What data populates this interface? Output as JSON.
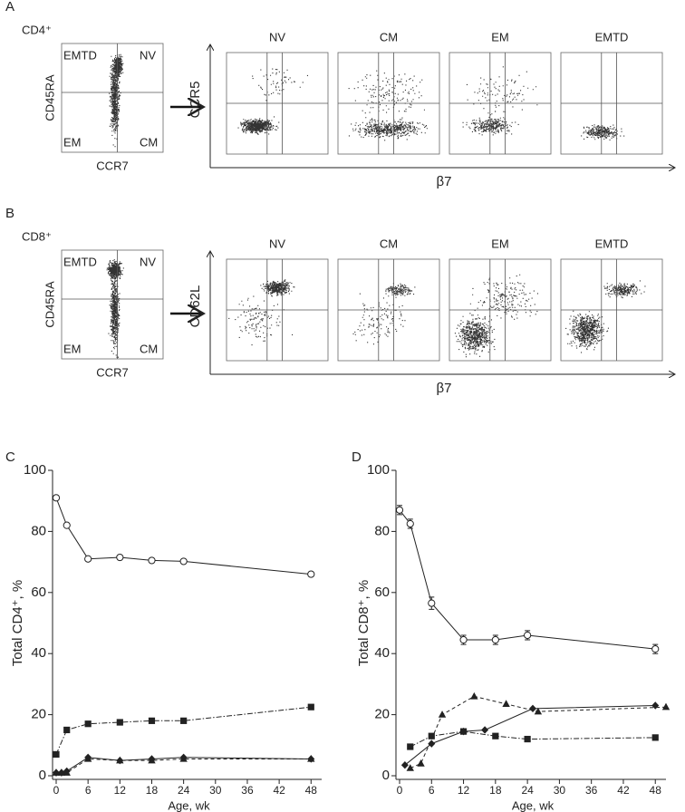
{
  "panels": {
    "A": {
      "letter": "A",
      "population": "CD4⁺",
      "gate_labels": [
        "EMTD",
        "NV",
        "EM",
        "CM"
      ],
      "y_axis": "CD45RA",
      "x_axis": "CCR7",
      "subset_titles": [
        "NV",
        "CM",
        "EM",
        "EMTD"
      ],
      "marker_y": "CCR5",
      "marker_x": "β7"
    },
    "B": {
      "letter": "B",
      "population": "CD8⁺",
      "gate_labels": [
        "EMTD",
        "NV",
        "EM",
        "CM"
      ],
      "y_axis": "CD45RA",
      "x_axis": "CCR7",
      "subset_titles": [
        "NV",
        "CM",
        "EM",
        "EMTD"
      ],
      "marker_y": "CD62L",
      "marker_x": "β7"
    }
  },
  "chart_data": [
    {
      "letter": "C",
      "type": "line",
      "x_label": "Age, wk",
      "y_label": "Total CD4⁺, %",
      "xlim": [
        0,
        50
      ],
      "xticks": [
        0,
        6,
        12,
        18,
        24,
        30,
        36,
        42,
        48
      ],
      "ylim": [
        0,
        100
      ],
      "yticks": [
        0,
        20,
        40,
        60,
        80,
        100
      ],
      "series": [
        {
          "marker": "circle-open",
          "dash": "solid",
          "color": "#222",
          "x": [
            0,
            2,
            6,
            12,
            18,
            24,
            48
          ],
          "values": [
            91,
            82,
            71,
            71.5,
            70.5,
            70.2,
            66
          ]
        },
        {
          "marker": "square",
          "dash": "dashdot",
          "color": "#222",
          "x": [
            0,
            2,
            6,
            12,
            18,
            24,
            48
          ],
          "values": [
            7,
            15,
            17,
            17.5,
            18,
            18,
            22.5
          ]
        },
        {
          "marker": "diamond",
          "dash": "solid",
          "color": "#222",
          "x": [
            0,
            1,
            2,
            6,
            12,
            18,
            24,
            48
          ],
          "values": [
            1,
            1,
            1.5,
            6,
            5,
            5.5,
            6,
            5.5
          ]
        },
        {
          "marker": "triangle",
          "dash": "dashed",
          "color": "#222",
          "x": [
            0,
            1,
            2,
            6,
            12,
            18,
            24,
            48
          ],
          "values": [
            1,
            1,
            1,
            5.5,
            5,
            5,
            5.5,
            5.5
          ]
        }
      ]
    },
    {
      "letter": "D",
      "type": "line",
      "x_label": "Age, wk",
      "y_label": "Total CD8⁺, %",
      "xlim": [
        0,
        50
      ],
      "xticks": [
        0,
        6,
        12,
        18,
        24,
        30,
        36,
        42,
        48
      ],
      "ylim": [
        0,
        100
      ],
      "yticks": [
        0,
        20,
        40,
        60,
        80,
        100
      ],
      "series": [
        {
          "marker": "circle-open",
          "dash": "solid",
          "color": "#222",
          "x": [
            0,
            2,
            6,
            12,
            18,
            24,
            48
          ],
          "values": [
            87,
            82.5,
            56.5,
            44.5,
            44.5,
            46,
            41.5
          ],
          "errors": [
            1.5,
            1.5,
            2,
            1.5,
            1.5,
            1.5,
            1.5
          ]
        },
        {
          "marker": "square",
          "dash": "dashdot",
          "color": "#222",
          "x": [
            2,
            6,
            12,
            18,
            24,
            48
          ],
          "values": [
            9.5,
            13,
            14.5,
            13,
            12,
            12.5
          ]
        },
        {
          "marker": "diamond",
          "dash": "solid",
          "color": "#222",
          "x": [
            1,
            6,
            12,
            16,
            25,
            48
          ],
          "values": [
            3.5,
            10.5,
            14.5,
            15,
            22,
            23
          ]
        },
        {
          "marker": "triangle",
          "dash": "dashed",
          "color": "#222",
          "x": [
            2,
            4,
            8,
            14,
            20,
            26,
            50
          ],
          "values": [
            2.5,
            4,
            20,
            26,
            23.5,
            21,
            22.5
          ]
        }
      ]
    }
  ]
}
